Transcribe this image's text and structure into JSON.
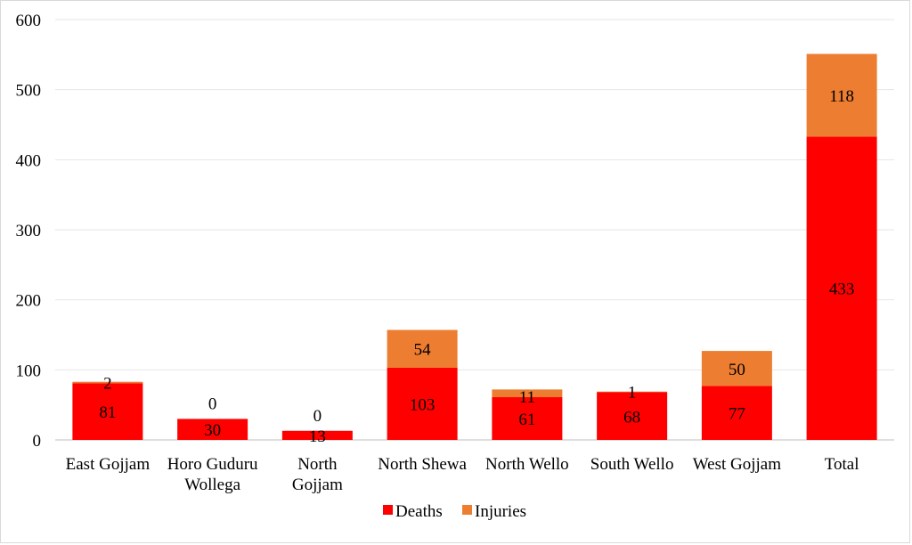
{
  "chart_data": {
    "type": "bar",
    "stacked": true,
    "title": "",
    "xlabel": "",
    "ylabel": "",
    "ylim": [
      0,
      600
    ],
    "yticks": [
      "0",
      "100",
      "200",
      "300",
      "400",
      "500",
      "600"
    ],
    "grid": true,
    "legend_position": "bottom-center",
    "categories": [
      [
        "East Gojjam"
      ],
      [
        "Horo Guduru",
        "Wollega"
      ],
      [
        "North",
        "Gojjam"
      ],
      [
        "North Shewa"
      ],
      [
        "North Wello"
      ],
      [
        "South Wello"
      ],
      [
        "West Gojjam"
      ],
      [
        "Total"
      ]
    ],
    "series": [
      {
        "name": "Deaths",
        "color": "#ff0000",
        "values": [
          81,
          30,
          13,
          103,
          61,
          68,
          77,
          433
        ]
      },
      {
        "name": "Injuries",
        "color": "#ed7d31",
        "values": [
          2,
          0,
          0,
          54,
          11,
          1,
          50,
          118
        ]
      }
    ],
    "data_labels": [
      [
        "81",
        "30",
        "13",
        "103",
        "61",
        "68",
        "77",
        "433"
      ],
      [
        "2",
        "0",
        "0",
        "54",
        "11",
        "1",
        "50",
        "118"
      ]
    ]
  }
}
